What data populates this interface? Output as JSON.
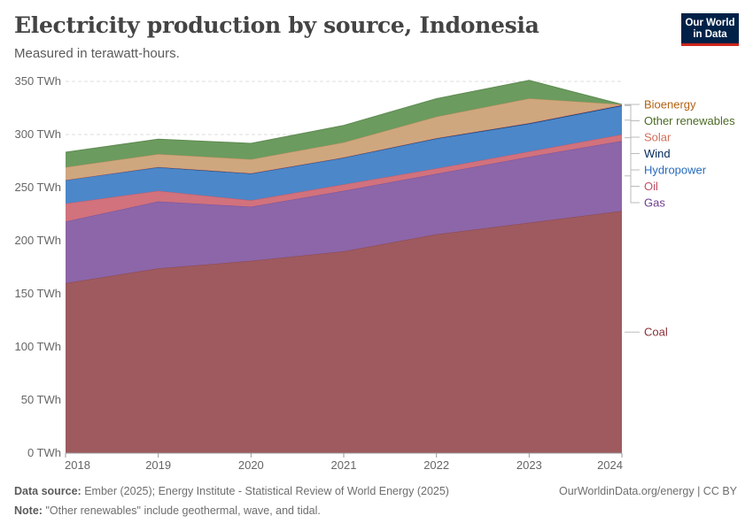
{
  "header": {
    "title": "Electricity production by source, Indonesia",
    "subtitle": "Measured in terawatt-hours."
  },
  "logo": {
    "line1": "Our World",
    "line2": "in Data"
  },
  "footer": {
    "source_label": "Data source:",
    "source_text": "Ember (2025); Energy Institute - Statistical Review of World Energy (2025)",
    "note_label": "Note:",
    "note_text": "\"Other renewables\" include geothermal, wave, and tidal.",
    "credit": "OurWorldinData.org/energy | CC BY"
  },
  "chart_data": {
    "type": "area",
    "stacked": true,
    "x": [
      "2018",
      "2019",
      "2020",
      "2021",
      "2022",
      "2023",
      "2024"
    ],
    "ylim": [
      0,
      350
    ],
    "yticks": [
      {
        "value": 0,
        "label": "0 TWh"
      },
      {
        "value": 50,
        "label": "50 TWh"
      },
      {
        "value": 100,
        "label": "100 TWh"
      },
      {
        "value": 150,
        "label": "150 TWh"
      },
      {
        "value": 200,
        "label": "200 TWh"
      },
      {
        "value": 250,
        "label": "250 TWh"
      },
      {
        "value": 300,
        "label": "300 TWh"
      },
      {
        "value": 350,
        "label": "350 TWh"
      }
    ],
    "grid": true,
    "legend_position": "right",
    "series": [
      {
        "name": "Coal",
        "color": "#9e5a5e",
        "line": "#8f464d",
        "label_color": "#883039",
        "values": [
          160,
          174,
          181,
          190,
          206,
          217,
          228
        ]
      },
      {
        "name": "Gas",
        "color": "#8c66a8",
        "line": "#7a52a0",
        "label_color": "#6d3e91",
        "values": [
          58,
          63,
          51,
          57,
          57,
          62,
          66
        ]
      },
      {
        "name": "Oil",
        "color": "#d1727d",
        "line": "#c95a68",
        "label_color": "#c15065",
        "values": [
          17,
          10,
          6,
          6,
          5,
          5,
          6
        ]
      },
      {
        "name": "Hydropower",
        "color": "#4c87c9",
        "line": "#3d74b5",
        "label_color": "#286bbb",
        "values": [
          22,
          22,
          25,
          25,
          28,
          26,
          27
        ]
      },
      {
        "name": "Wind",
        "color": "#0f3a65",
        "line": "#0f3a65",
        "label_color": "#00295b",
        "values": [
          0.2,
          0.5,
          0.5,
          0.4,
          0.5,
          0.5,
          0.5
        ]
      },
      {
        "name": "Solar",
        "color": "#e39685",
        "line": "#d8806d",
        "label_color": "#d26e5a",
        "values": [
          0.1,
          0.1,
          0.2,
          0.2,
          0.3,
          0.5,
          0.8
        ]
      },
      {
        "name": "Bioenergy",
        "color": "#cfa77e",
        "line": "#b98e5f",
        "label_color": "#b16214",
        "values": [
          12,
          12,
          13,
          14,
          20,
          23,
          0
        ]
      },
      {
        "name": "Other renewables",
        "color": "#6b9b5f",
        "line": "#5d8a50",
        "label_color": "#4c6a24",
        "values": [
          14,
          14,
          15,
          16,
          17,
          17,
          0
        ]
      }
    ]
  }
}
